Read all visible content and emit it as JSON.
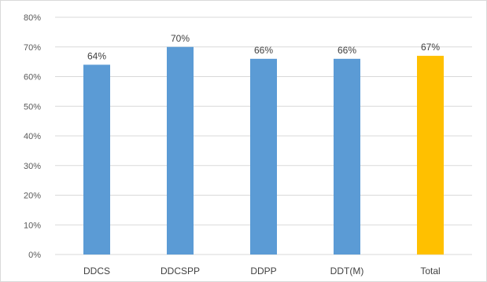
{
  "chart_data": {
    "type": "bar",
    "categories": [
      "DDCS",
      "DDCSPP",
      "DDPP",
      "DDT(M)",
      "Total"
    ],
    "values": [
      64,
      70,
      66,
      66,
      67
    ],
    "value_labels": [
      "64%",
      "70%",
      "66%",
      "66%",
      "67%"
    ],
    "y_ticks": [
      "0%",
      "10%",
      "20%",
      "30%",
      "40%",
      "50%",
      "60%",
      "70%",
      "80%"
    ],
    "ylim": [
      0,
      80
    ],
    "grid": true,
    "legend": "none",
    "colors": {
      "bar": "#5b9bd5",
      "highlight": "#ffc000",
      "gridline": "#d9d9d9",
      "text": "#595959"
    },
    "highlight_index": 4
  }
}
